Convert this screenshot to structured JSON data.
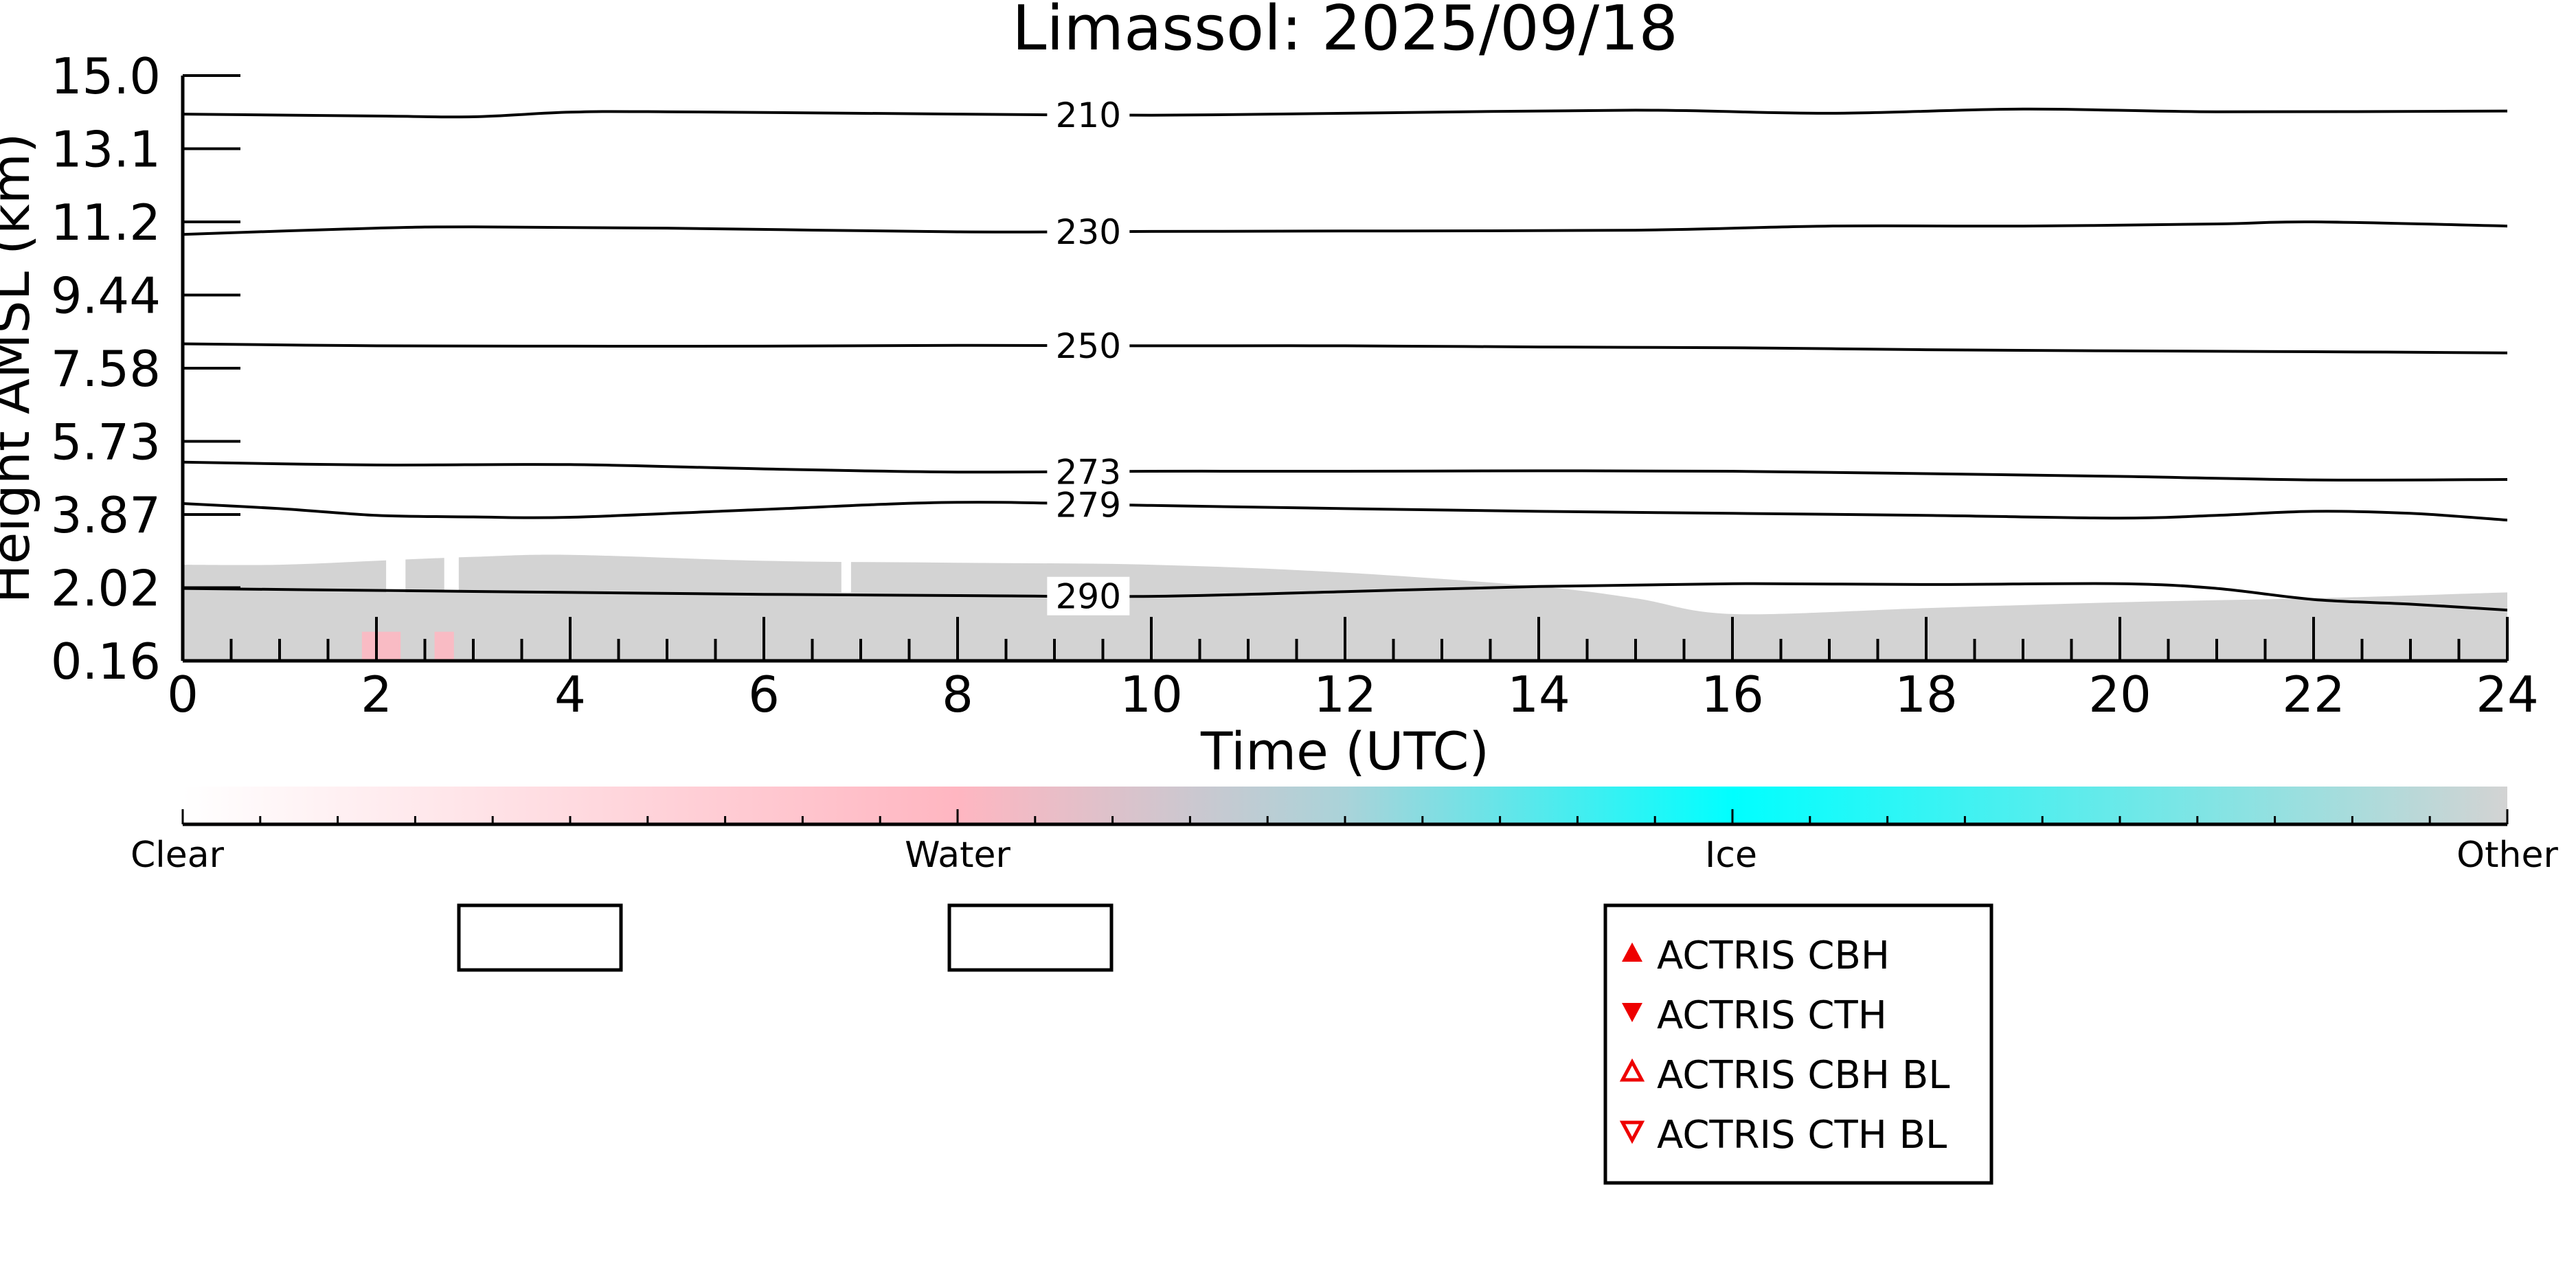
{
  "chart_data": {
    "type": "heatmap",
    "title": "Limassol: 2025/09/18",
    "xlabel": "Time (UTC)",
    "ylabel": "Height AMSL (km)",
    "xlim": [
      0,
      24
    ],
    "x_ticks": [
      "0",
      "2",
      "4",
      "6",
      "8",
      "10",
      "12",
      "14",
      "16",
      "18",
      "20",
      "22",
      "24"
    ],
    "y_ticks": [
      "0.16",
      "2.02",
      "3.87",
      "5.73",
      "7.58",
      "9.44",
      "11.2",
      "13.1",
      "15.0"
    ],
    "ylim": [
      0.16,
      15.0
    ],
    "contours": [
      {
        "label": "210",
        "points": [
          [
            0,
            14.0
          ],
          [
            2,
            13.95
          ],
          [
            3,
            13.93
          ],
          [
            4,
            14.05
          ],
          [
            5,
            14.06
          ],
          [
            8,
            14.0
          ],
          [
            10,
            13.97
          ],
          [
            12,
            14.02
          ],
          [
            15,
            14.1
          ],
          [
            17,
            14.02
          ],
          [
            19,
            14.13
          ],
          [
            21,
            14.06
          ],
          [
            24,
            14.08
          ]
        ]
      },
      {
        "label": "230",
        "points": [
          [
            0,
            10.9
          ],
          [
            2,
            11.05
          ],
          [
            3,
            11.08
          ],
          [
            5,
            11.05
          ],
          [
            8,
            10.96
          ],
          [
            10,
            10.97
          ],
          [
            12,
            10.98
          ],
          [
            15,
            11.0
          ],
          [
            17,
            11.1
          ],
          [
            19,
            11.1
          ],
          [
            21,
            11.15
          ],
          [
            22,
            11.2
          ],
          [
            24,
            11.1
          ]
        ]
      },
      {
        "label": "250",
        "points": [
          [
            0,
            8.2
          ],
          [
            2,
            8.15
          ],
          [
            4,
            8.14
          ],
          [
            6,
            8.14
          ],
          [
            8,
            8.16
          ],
          [
            10,
            8.15
          ],
          [
            12,
            8.15
          ],
          [
            14,
            8.12
          ],
          [
            16,
            8.1
          ],
          [
            18,
            8.05
          ],
          [
            20,
            8.02
          ],
          [
            22,
            8.0
          ],
          [
            24,
            7.97
          ]
        ]
      },
      {
        "label": "273",
        "points": [
          [
            0,
            5.2
          ],
          [
            2,
            5.13
          ],
          [
            4,
            5.14
          ],
          [
            6,
            5.03
          ],
          [
            8,
            4.95
          ],
          [
            10,
            4.97
          ],
          [
            12,
            4.97
          ],
          [
            14,
            4.98
          ],
          [
            16,
            4.97
          ],
          [
            18,
            4.91
          ],
          [
            20,
            4.84
          ],
          [
            22,
            4.75
          ],
          [
            24,
            4.76
          ]
        ]
      },
      {
        "label": "279",
        "points": [
          [
            0,
            4.15
          ],
          [
            1,
            4.02
          ],
          [
            2,
            3.85
          ],
          [
            3,
            3.81
          ],
          [
            4,
            3.8
          ],
          [
            6,
            4.0
          ],
          [
            8,
            4.18
          ],
          [
            10,
            4.1
          ],
          [
            12,
            4.02
          ],
          [
            14,
            3.95
          ],
          [
            16,
            3.9
          ],
          [
            18,
            3.85
          ],
          [
            20,
            3.78
          ],
          [
            21,
            3.85
          ],
          [
            22,
            3.95
          ],
          [
            23,
            3.9
          ],
          [
            24,
            3.73
          ]
        ]
      },
      {
        "label": "290",
        "points": [
          [
            0,
            2.0
          ],
          [
            2,
            1.95
          ],
          [
            4,
            1.9
          ],
          [
            6,
            1.85
          ],
          [
            8,
            1.82
          ],
          [
            10,
            1.8
          ],
          [
            12,
            1.92
          ],
          [
            14,
            2.05
          ],
          [
            16,
            2.12
          ],
          [
            18,
            2.1
          ],
          [
            20,
            2.12
          ],
          [
            21,
            2.0
          ],
          [
            22,
            1.72
          ],
          [
            23,
            1.6
          ],
          [
            24,
            1.45
          ]
        ]
      }
    ],
    "classes": {
      "other_color": "#d3d3d3",
      "water_color": "#ffb6c1",
      "layer_top_km": [
        [
          0,
          2.6
        ],
        [
          1,
          2.6
        ],
        [
          2,
          2.7
        ],
        [
          3,
          2.8
        ],
        [
          4,
          2.85
        ],
        [
          6,
          2.7
        ],
        [
          8,
          2.65
        ],
        [
          10,
          2.6
        ],
        [
          12,
          2.4
        ],
        [
          14,
          2.05
        ],
        [
          15,
          1.75
        ],
        [
          16,
          1.35
        ],
        [
          18,
          1.5
        ],
        [
          20,
          1.65
        ],
        [
          22,
          1.75
        ],
        [
          24,
          1.9
        ]
      ],
      "gaps": [
        [
          2.1,
          2.3
        ],
        [
          2.7,
          2.85
        ],
        [
          6.8,
          6.9
        ]
      ],
      "water_patches": [
        [
          1.85,
          2.25
        ],
        [
          2.6,
          2.8
        ]
      ]
    },
    "colorbar": {
      "labels": [
        "Clear",
        "Water",
        "Ice",
        "Other"
      ],
      "stops": [
        "#ffffff",
        "#ffb6c1",
        "#00ffff",
        "#d3d3d3"
      ]
    },
    "legend": {
      "placement": "bottom-center",
      "items": [
        {
          "marker": "filled-up-triangle",
          "label": "ACTRIS CBH"
        },
        {
          "marker": "filled-down-triangle",
          "label": "ACTRIS CTH"
        },
        {
          "marker": "open-up-triangle",
          "label": "ACTRIS CBH BL"
        },
        {
          "marker": "open-down-triangle",
          "label": "ACTRIS CTH BL"
        }
      ],
      "marker_color": "#ee0000"
    }
  }
}
